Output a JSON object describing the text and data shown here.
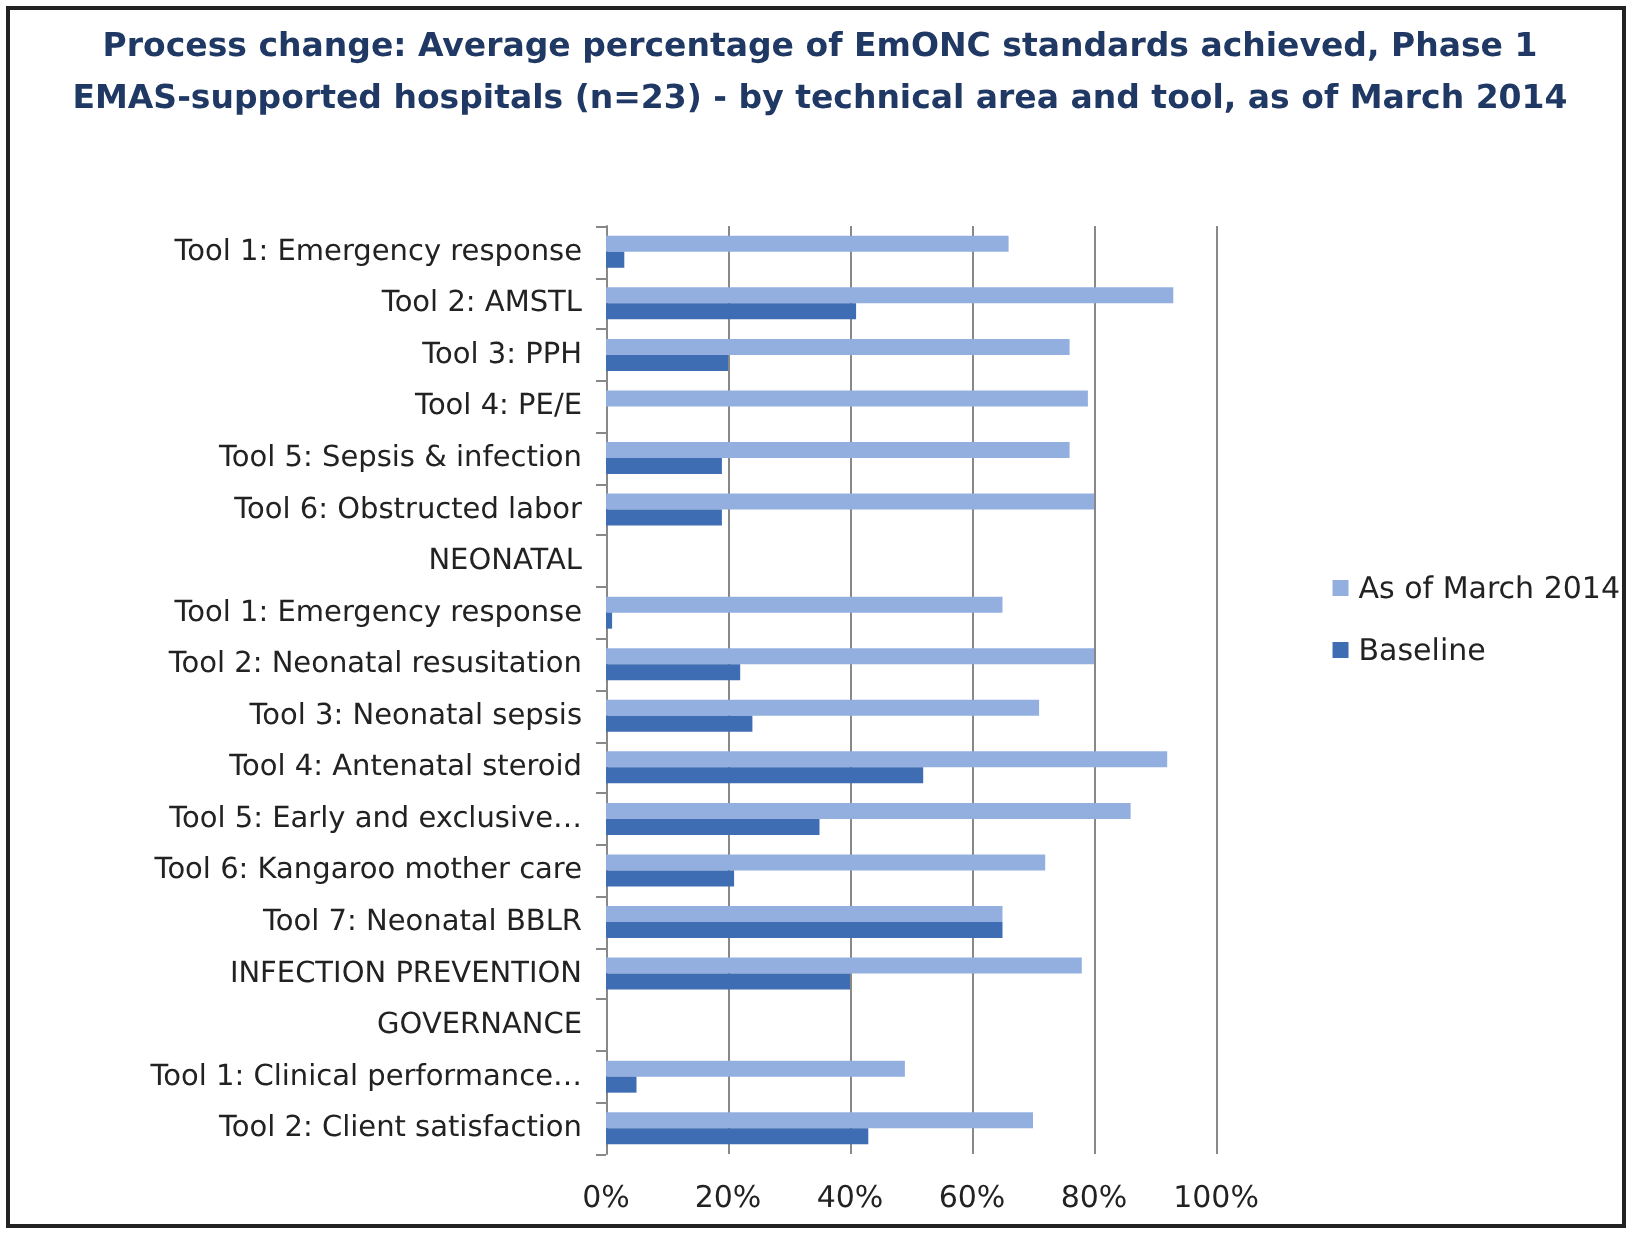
{
  "chart_data": {
    "type": "bar",
    "orientation": "horizontal",
    "title": "Process change:  Average percentage of EmONC standards achieved, Phase 1\nEMAS-supported hospitals (n=23) - by technical area and tool, as of March 2014",
    "categories": [
      "Tool 1: Emergency response",
      "Tool 2: AMSTL",
      "Tool 3: PPH",
      "Tool 4: PE/E",
      "Tool 5: Sepsis & infection",
      "Tool 6: Obstructed labor",
      "NEONATAL",
      "Tool 1: Emergency response",
      "Tool 2: Neonatal resusitation",
      "Tool 3: Neonatal sepsis",
      "Tool 4: Antenatal steroid",
      "Tool 5: Early and exclusive…",
      "Tool 6: Kangaroo mother care",
      "Tool 7: Neonatal BBLR",
      "INFECTION PREVENTION",
      "GOVERNANCE",
      "Tool 1: Clinical performance…",
      "Tool 2: Client satisfaction"
    ],
    "series": [
      {
        "name": "As of March 2014",
        "color": "#93afe0",
        "values": [
          66,
          93,
          76,
          79,
          76,
          80,
          null,
          65,
          80,
          71,
          92,
          86,
          72,
          65,
          78,
          null,
          49,
          70
        ]
      },
      {
        "name": "Baseline",
        "color": "#3f6db3",
        "values": [
          3,
          41,
          20,
          null,
          19,
          19,
          null,
          1,
          22,
          24,
          52,
          35,
          21,
          65,
          40,
          null,
          5,
          43
        ]
      }
    ],
    "xlim": [
      0,
      100
    ],
    "xticks": [
      {
        "value": 0,
        "label": "0%"
      },
      {
        "value": 20,
        "label": "20%"
      },
      {
        "value": 40,
        "label": "40%"
      },
      {
        "value": 60,
        "label": "60%"
      },
      {
        "value": 80,
        "label": "80%"
      },
      {
        "value": 100,
        "label": "100%"
      }
    ],
    "grid": "x",
    "legend": "right"
  }
}
